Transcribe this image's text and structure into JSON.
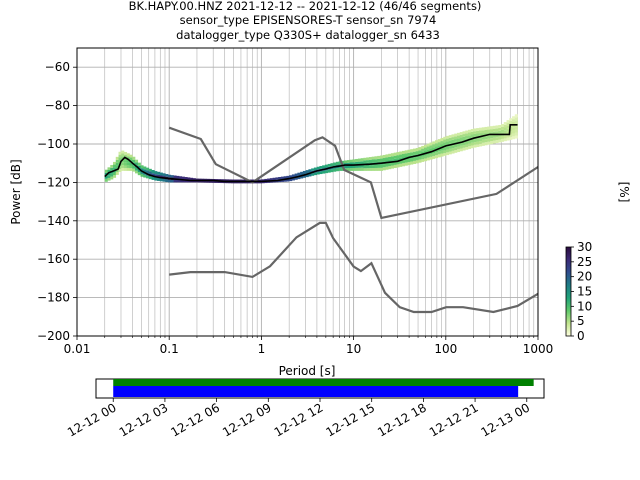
{
  "title": {
    "line1": "BK.HAPY.00.HNZ   2021-12-12 -- 2021-12-12  (46/46 segments)",
    "line2": "sensor_type EPISENSORES-T sensor_sn 7974",
    "line3": "datalogger_type Q330S+ datalogger_sn 6433"
  },
  "chart_data": [
    {
      "type": "heatmap",
      "name": "ppsd",
      "xlabel": "Period [s]",
      "ylabel": "Power [dB]",
      "xscale": "log",
      "xlim": [
        0.01,
        1000
      ],
      "ylim": [
        -200,
        -50
      ],
      "xticks": [
        {
          "v": 0.01,
          "label": "0.01"
        },
        {
          "v": 0.1,
          "label": "0.1"
        },
        {
          "v": 1,
          "label": "1"
        },
        {
          "v": 10,
          "label": "10"
        },
        {
          "v": 100,
          "label": "100"
        },
        {
          "v": 1000,
          "label": "1000"
        }
      ],
      "yticks": [
        {
          "v": -60,
          "label": "−60"
        },
        {
          "v": -80,
          "label": "−80"
        },
        {
          "v": -100,
          "label": "−100"
        },
        {
          "v": -120,
          "label": "−120"
        },
        {
          "v": -140,
          "label": "−140"
        },
        {
          "v": -160,
          "label": "−160"
        },
        {
          "v": -180,
          "label": "−180"
        },
        {
          "v": -200,
          "label": "−200"
        }
      ],
      "grid": true,
      "mean_curve": {
        "x": [
          0.02,
          0.022,
          0.025,
          0.028,
          0.03,
          0.033,
          0.036,
          0.04,
          0.045,
          0.05,
          0.06,
          0.07,
          0.08,
          0.1,
          0.13,
          0.17,
          0.2,
          0.3,
          0.4,
          0.5,
          0.7,
          1,
          1.5,
          2,
          2.5,
          3,
          4,
          5,
          6,
          7,
          8,
          10,
          15,
          20,
          30,
          40,
          50,
          70,
          100,
          150,
          200,
          300,
          400,
          490,
          500,
          600
        ],
        "y": [
          -117,
          -115,
          -114,
          -113,
          -109,
          -107,
          -108,
          -110,
          -112,
          -114,
          -116,
          -117,
          -117.5,
          -118,
          -118.5,
          -119,
          -119,
          -119,
          -119.5,
          -119.5,
          -119.5,
          -119.5,
          -119,
          -118,
          -117,
          -116,
          -114,
          -113,
          -112,
          -111.5,
          -111,
          -111,
          -110.5,
          -110,
          -109,
          -107,
          -106,
          -104,
          -101,
          -99,
          -97,
          -95,
          -95,
          -95,
          -90,
          -90
        ]
      },
      "density": [
        {
          "x": 0.02,
          "y": [
            -120,
            -114
          ],
          "pct": 12
        },
        {
          "x": 0.025,
          "y": [
            -118,
            -110
          ],
          "pct": 10
        },
        {
          "x": 0.03,
          "y": [
            -114,
            -103
          ],
          "pct": 6
        },
        {
          "x": 0.04,
          "y": [
            -114,
            -106
          ],
          "pct": 9
        },
        {
          "x": 0.05,
          "y": [
            -117,
            -111
          ],
          "pct": 14
        },
        {
          "x": 0.07,
          "y": [
            -119,
            -114
          ],
          "pct": 20
        },
        {
          "x": 0.1,
          "y": [
            -120,
            -116
          ],
          "pct": 26
        },
        {
          "x": 0.2,
          "y": [
            -120,
            -118
          ],
          "pct": 29
        },
        {
          "x": 0.5,
          "y": [
            -120.5,
            -118.5
          ],
          "pct": 29
        },
        {
          "x": 1,
          "y": [
            -120.5,
            -118.5
          ],
          "pct": 28
        },
        {
          "x": 2,
          "y": [
            -119.5,
            -116.5
          ],
          "pct": 24
        },
        {
          "x": 4,
          "y": [
            -116,
            -112
          ],
          "pct": 18
        },
        {
          "x": 7,
          "y": [
            -114,
            -109
          ],
          "pct": 14
        },
        {
          "x": 10,
          "y": [
            -114,
            -108
          ],
          "pct": 11
        },
        {
          "x": 20,
          "y": [
            -114,
            -106
          ],
          "pct": 9
        },
        {
          "x": 50,
          "y": [
            -110,
            -102
          ],
          "pct": 8
        },
        {
          "x": 100,
          "y": [
            -106,
            -96
          ],
          "pct": 7
        },
        {
          "x": 200,
          "y": [
            -102,
            -92
          ],
          "pct": 6
        },
        {
          "x": 400,
          "y": [
            -99,
            -90
          ],
          "pct": 5
        },
        {
          "x": 600,
          "y": [
            -97,
            -84
          ],
          "pct": 3
        }
      ],
      "noise_models": [
        {
          "name": "nhnm",
          "x": [
            0.1,
            0.22,
            0.32,
            0.8,
            3.8,
            4.6,
            6.3,
            7.9,
            15.4,
            20,
            354.8,
            1000
          ],
          "y": [
            -91.5,
            -97.4,
            -110.5,
            -120,
            -98,
            -96.5,
            -101,
            -113.5,
            -120,
            -138.5,
            -126,
            -112
          ]
        },
        {
          "name": "nlnm",
          "x": [
            0.1,
            0.17,
            0.4,
            0.8,
            1.24,
            2.4,
            4.3,
            5,
            6,
            10,
            12,
            15.6,
            21.9,
            31.6,
            45,
            70,
            101,
            154,
            328,
            600,
            1000
          ],
          "y": [
            -168,
            -166.7,
            -166.7,
            -169.2,
            -163.7,
            -148.6,
            -141.1,
            -141.1,
            -149,
            -163.8,
            -166.2,
            -162.1,
            -177.5,
            -185,
            -187.5,
            -187.5,
            -185,
            -185,
            -187.5,
            -184.4,
            -178
          ]
        }
      ]
    },
    {
      "type": "bar",
      "name": "colorbar",
      "label": "[%]",
      "range": [
        0,
        30
      ],
      "ticks": [
        0,
        5,
        10,
        15,
        20,
        25,
        30
      ],
      "colormap": [
        "#ffffe0",
        "#c2e58f",
        "#5fc96b",
        "#21a37a",
        "#1f7d86",
        "#2f4e8e",
        "#3b2a76",
        "#2a0c3d"
      ]
    },
    {
      "type": "bar",
      "name": "coverage",
      "xlim_hours": [
        -1,
        25
      ],
      "xticks": [
        {
          "h": 0,
          "label": "12-12 00"
        },
        {
          "h": 3,
          "label": "12-12 03"
        },
        {
          "h": 6,
          "label": "12-12 06"
        },
        {
          "h": 9,
          "label": "12-12 09"
        },
        {
          "h": 12,
          "label": "12-12 12"
        },
        {
          "h": 15,
          "label": "12-12 15"
        },
        {
          "h": 18,
          "label": "12-12 18"
        },
        {
          "h": 21,
          "label": "12-12 21"
        },
        {
          "h": 24,
          "label": "12-13 00"
        }
      ],
      "bars": [
        {
          "name": "data",
          "start": 0,
          "end": 24.4,
          "color": "#008000"
        },
        {
          "name": "ppsd",
          "start": 0,
          "end": 23.5,
          "color": "#0000ff"
        }
      ]
    }
  ]
}
